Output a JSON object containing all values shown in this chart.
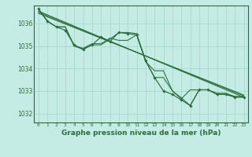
{
  "background_color": "#c5ece4",
  "grid_color": "#a8d8cc",
  "line_color": "#2d6b3c",
  "xlabel": "Graphe pression niveau de la mer (hPa)",
  "yticks": [
    1032,
    1033,
    1034,
    1035,
    1036
  ],
  "xticks": [
    0,
    1,
    2,
    3,
    4,
    5,
    6,
    7,
    8,
    9,
    10,
    11,
    12,
    13,
    14,
    15,
    16,
    17,
    18,
    19,
    20,
    21,
    22,
    23
  ],
  "xlim": [
    -0.5,
    23.5
  ],
  "ylim": [
    1031.6,
    1036.8
  ],
  "main_series_x": [
    0,
    1,
    2,
    3,
    4,
    5,
    6,
    7,
    8,
    9,
    10,
    11,
    12,
    13,
    14,
    15,
    16,
    17,
    18,
    19,
    20,
    21,
    22,
    23
  ],
  "main_series": [
    1036.65,
    1036.1,
    1035.85,
    1035.7,
    1035.05,
    1034.85,
    1035.05,
    1035.4,
    1035.2,
    1035.6,
    1035.55,
    1035.5,
    1034.35,
    1033.6,
    1033.0,
    1032.85,
    1032.6,
    1032.35,
    1033.05,
    1033.05,
    1032.85,
    1032.85,
    1032.72,
    1032.72
  ],
  "series2": [
    1036.65,
    1036.1,
    1035.85,
    1035.85,
    1035.0,
    1034.85,
    1035.05,
    1035.05,
    1035.3,
    1035.6,
    1035.6,
    1035.55,
    1034.35,
    1033.6,
    1033.6,
    1033.0,
    1032.7,
    1032.35,
    1033.05,
    1033.05,
    1032.85,
    1032.85,
    1032.75,
    1032.75
  ],
  "series3": [
    1036.65,
    1036.1,
    1035.85,
    1035.85,
    1035.0,
    1034.9,
    1035.1,
    1035.1,
    1035.35,
    1035.25,
    1035.25,
    1035.5,
    1034.3,
    1033.9,
    1033.9,
    1033.0,
    1032.65,
    1033.05,
    1033.05,
    1033.05,
    1032.9,
    1032.9,
    1032.75,
    1032.75
  ],
  "trend1_x": [
    0,
    23
  ],
  "trend1_y": [
    1036.55,
    1032.72
  ],
  "trend2_x": [
    0,
    23
  ],
  "trend2_y": [
    1036.5,
    1032.78
  ],
  "trend3_x": [
    0,
    23
  ],
  "trend3_y": [
    1036.45,
    1032.82
  ]
}
